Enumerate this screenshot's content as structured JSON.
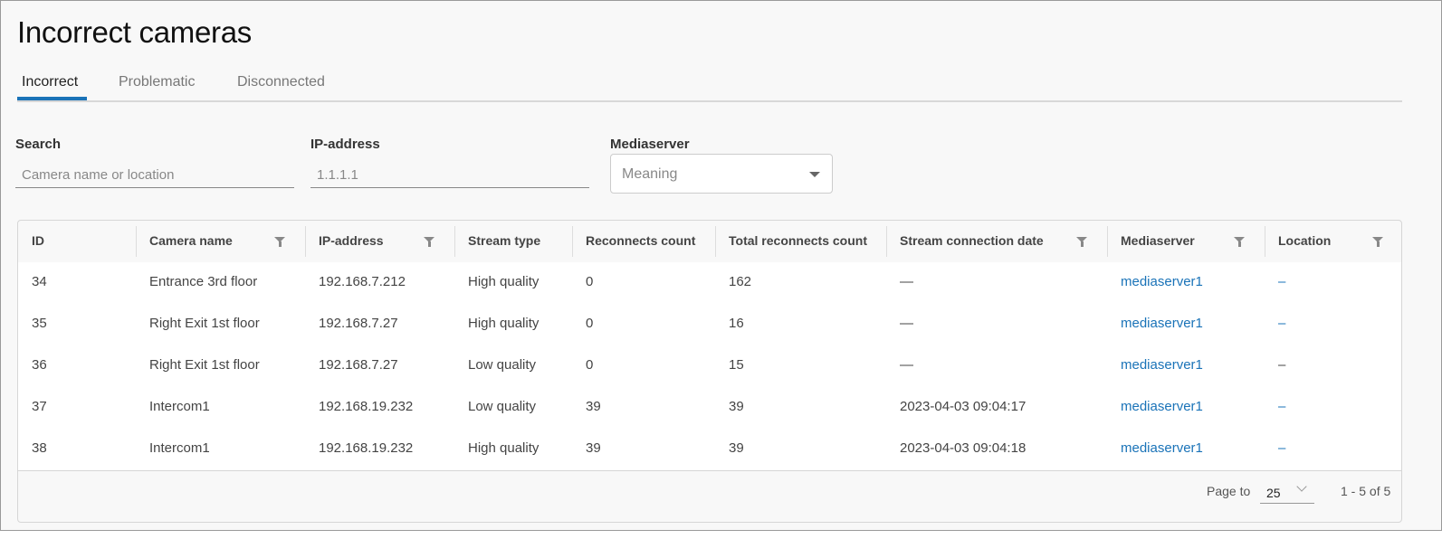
{
  "title": "Incorrect cameras",
  "tabs": [
    {
      "label": "Incorrect",
      "active": true
    },
    {
      "label": "Problematic",
      "active": false
    },
    {
      "label": "Disconnected",
      "active": false
    }
  ],
  "filters": {
    "search": {
      "label": "Search",
      "placeholder": "Camera name or location",
      "value": ""
    },
    "ip": {
      "label": "IP-address",
      "placeholder": "1.1.1.1",
      "value": ""
    },
    "mediaserver": {
      "label": "Mediaserver",
      "placeholder": "Meaning",
      "icon": "caret-down-icon"
    }
  },
  "table": {
    "columns": [
      {
        "label": "ID",
        "filter": false
      },
      {
        "label": "Camera name",
        "filter": true
      },
      {
        "label": "IP-address",
        "filter": true
      },
      {
        "label": "Stream type",
        "filter": false
      },
      {
        "label": "Reconnects count",
        "filter": false
      },
      {
        "label": "Total reconnects count",
        "filter": false
      },
      {
        "label": "Stream connection date",
        "filter": true
      },
      {
        "label": "Mediaserver",
        "filter": true
      },
      {
        "label": "Location",
        "filter": true
      }
    ],
    "rows": [
      [
        "34",
        "Entrance 3rd floor",
        "192.168.7.212",
        "High quality",
        "0",
        "162",
        "—",
        "mediaserver1",
        "–"
      ],
      [
        "35",
        "Right Exit 1st floor",
        "192.168.7.27",
        "High quality",
        "0",
        "16",
        "—",
        "mediaserver1",
        "–"
      ],
      [
        "36",
        "Right Exit 1st floor",
        "192.168.7.27",
        "Low quality",
        "0",
        "15",
        "—",
        "mediaserver1",
        "–"
      ],
      [
        "37",
        "Intercom1",
        "192.168.19.232",
        "Low quality",
        "39",
        "39",
        "2023-04-03 09:04:17",
        "mediaserver1",
        "–"
      ],
      [
        "38",
        "Intercom1",
        "192.168.19.232",
        "High quality",
        "39",
        "39",
        "2023-04-03 09:04:18",
        "mediaserver1",
        "–"
      ]
    ]
  },
  "pagination": {
    "label": "Page to",
    "page_size": "25",
    "range": "1 - 5 of 5"
  },
  "colors": {
    "accent": "#1a73b8",
    "background": "#f8f8f8"
  }
}
